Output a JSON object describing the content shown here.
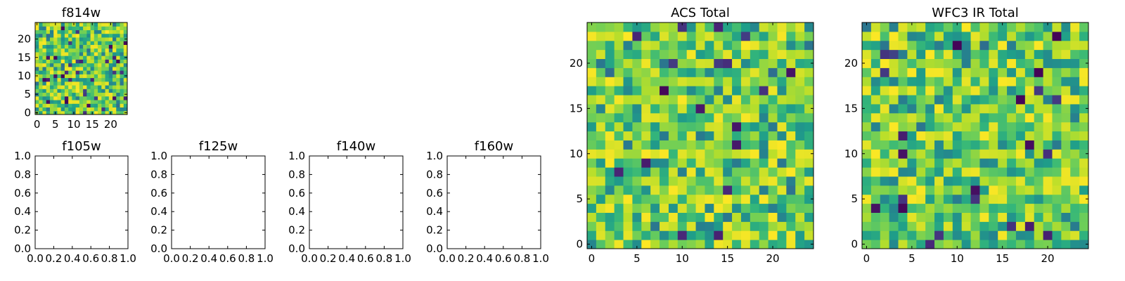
{
  "chart_data": [
    {
      "type": "heatmap",
      "title": "f814w",
      "grid_size": [
        25,
        25
      ],
      "xlim": [
        -0.5,
        24.5
      ],
      "ylim": [
        -0.5,
        24.5
      ],
      "xticks": [
        0,
        5,
        10,
        15,
        20
      ],
      "yticks": [
        0,
        5,
        10,
        15,
        20
      ],
      "xtick_labels": [
        "0",
        "5",
        "10",
        "15",
        "20"
      ],
      "ytick_labels": [
        "0",
        "5",
        "10",
        "15",
        "20"
      ],
      "colormap": "viridis",
      "value_range": [
        0,
        1
      ],
      "seed": 814
    },
    {
      "type": "empty",
      "title": "f105w",
      "xlim": [
        0,
        1
      ],
      "ylim": [
        0,
        1
      ],
      "xtick_labels": [
        "0.0",
        "0.2",
        "0.4",
        "0.6",
        "0.8",
        "1.0"
      ],
      "ytick_labels": [
        "0.0",
        "0.2",
        "0.4",
        "0.6",
        "0.8",
        "1.0"
      ]
    },
    {
      "type": "empty",
      "title": "f125w",
      "xlim": [
        0,
        1
      ],
      "ylim": [
        0,
        1
      ],
      "xtick_labels": [
        "0.0",
        "0.2",
        "0.4",
        "0.6",
        "0.8",
        "1.0"
      ],
      "ytick_labels": [
        "0.0",
        "0.2",
        "0.4",
        "0.6",
        "0.8",
        "1.0"
      ]
    },
    {
      "type": "empty",
      "title": "f140w",
      "xlim": [
        0,
        1
      ],
      "ylim": [
        0,
        1
      ],
      "xtick_labels": [
        "0.0",
        "0.2",
        "0.4",
        "0.6",
        "0.8",
        "1.0"
      ],
      "ytick_labels": [
        "0.0",
        "0.2",
        "0.4",
        "0.6",
        "0.8",
        "1.0"
      ]
    },
    {
      "type": "empty",
      "title": "f160w",
      "xlim": [
        0,
        1
      ],
      "ylim": [
        0,
        1
      ],
      "xtick_labels": [
        "0.0",
        "0.2",
        "0.4",
        "0.6",
        "0.8",
        "1.0"
      ],
      "ytick_labels": [
        "0.0",
        "0.2",
        "0.4",
        "0.6",
        "0.8",
        "1.0"
      ]
    },
    {
      "type": "heatmap",
      "title": "ACS Total",
      "grid_size": [
        25,
        25
      ],
      "xlim": [
        -0.5,
        24.5
      ],
      "ylim": [
        -0.5,
        24.5
      ],
      "xticks": [
        0,
        5,
        10,
        15,
        20
      ],
      "yticks": [
        0,
        5,
        10,
        15,
        20
      ],
      "xtick_labels": [
        "0",
        "5",
        "10",
        "15",
        "20"
      ],
      "ytick_labels": [
        "0",
        "5",
        "10",
        "15",
        "20"
      ],
      "colormap": "viridis",
      "value_range": [
        0,
        1
      ],
      "seed": 2101
    },
    {
      "type": "heatmap",
      "title": "WFC3 IR Total",
      "grid_size": [
        25,
        25
      ],
      "xlim": [
        -0.5,
        24.5
      ],
      "ylim": [
        -0.5,
        24.5
      ],
      "xticks": [
        0,
        5,
        10,
        15,
        20
      ],
      "yticks": [
        0,
        5,
        10,
        15,
        20
      ],
      "xtick_labels": [
        "0",
        "5",
        "10",
        "15",
        "20"
      ],
      "ytick_labels": [
        "0",
        "5",
        "10",
        "15",
        "20"
      ],
      "colormap": "viridis",
      "value_range": [
        0,
        1
      ],
      "seed": 3303
    }
  ]
}
